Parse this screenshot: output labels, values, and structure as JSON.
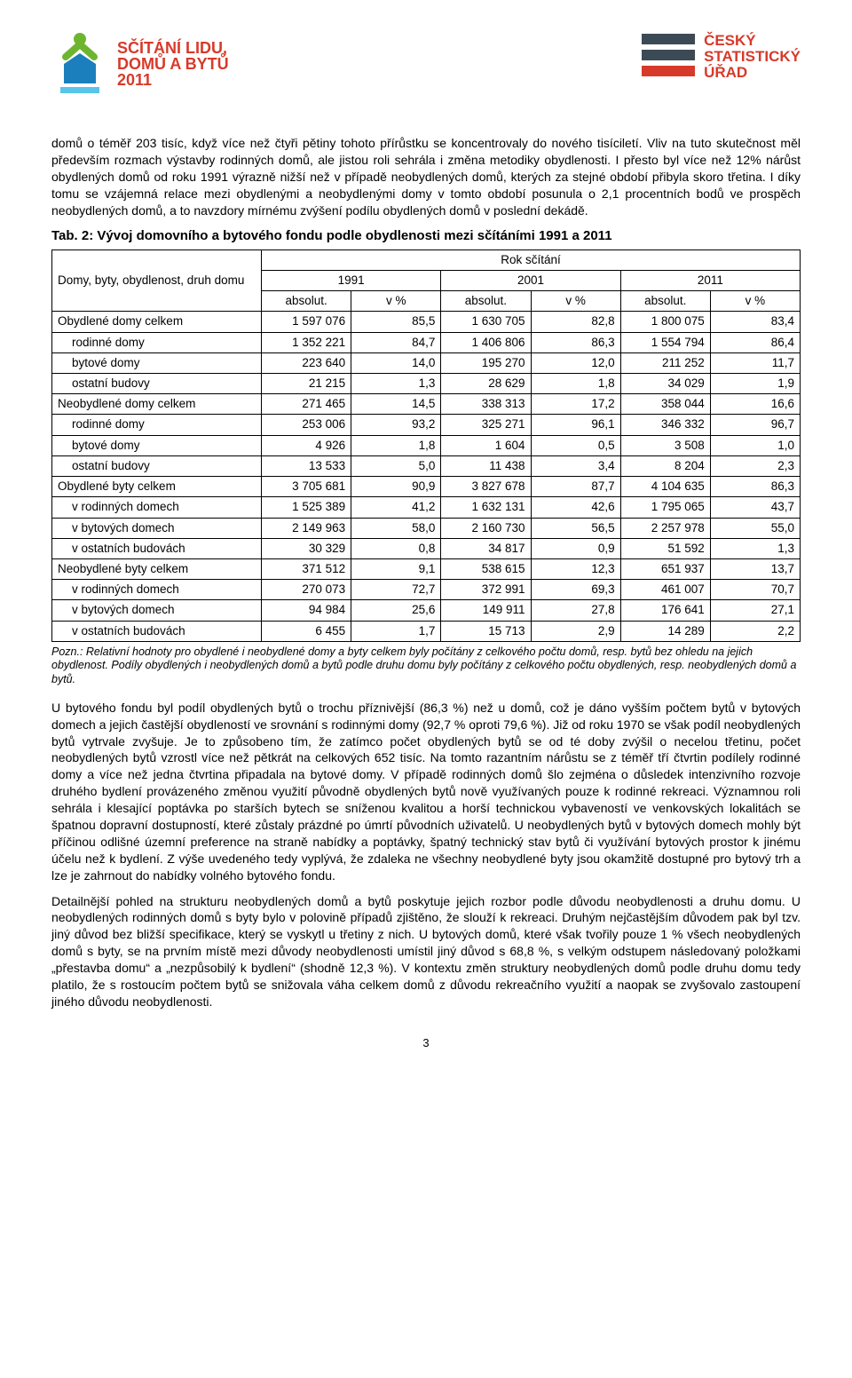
{
  "header": {
    "logo_left_line1": "SČÍTÁNÍ LIDU,",
    "logo_left_line2": "DOMŮ A BYTŮ",
    "logo_left_line3": "2011",
    "logo_right_line1": "ČESKÝ",
    "logo_right_line2": "STATISTICKÝ",
    "logo_right_line3": "ÚŘAD",
    "logo_left_icon_color1": "#6eb52f",
    "logo_left_icon_color2": "#1c7fbd",
    "bars_color_gray": "#3c4a55",
    "bars_color_red": "#d73a2a"
  },
  "para1": "domů o téměř 203 tisíc, když více než čtyři pětiny tohoto přírůstku se koncentrovaly do nového tisíciletí. Vliv na tuto skutečnost měl především rozmach výstavby rodinných domů, ale jistou roli sehrála i změna metodiky obydlenosti. I přesto byl více než 12% nárůst obydlených domů od roku 1991 výrazně nižší než v případě neobydlených domů, kterých za stejné období přibyla skoro třetina. I díky tomu se vzájemná relace mezi obydlenými a neobydlenými domy v tomto období posunula o 2,1 procentních bodů ve prospěch neobydlených domů, a to navzdory mírnému zvýšení podílu obydlených domů v poslední dekádě.",
  "table": {
    "caption": "Tab. 2: Vývoj domovního a bytového fondu podle obydlenosti mezi sčítáními 1991 a 2011",
    "rowhead": "Domy, byty, obydlenost, druh domu",
    "superhead": "Rok sčítání",
    "years": [
      "1991",
      "2001",
      "2011"
    ],
    "subcols": [
      "absolut.",
      "v %"
    ],
    "rows": [
      {
        "label": "Obydlené domy celkem",
        "indent": false,
        "vals": [
          "1 597 076",
          "85,5",
          "1 630 705",
          "82,8",
          "1 800 075",
          "83,4"
        ]
      },
      {
        "label": "rodinné domy",
        "indent": true,
        "vals": [
          "1 352 221",
          "84,7",
          "1 406 806",
          "86,3",
          "1 554 794",
          "86,4"
        ]
      },
      {
        "label": "bytové domy",
        "indent": true,
        "vals": [
          "223 640",
          "14,0",
          "195 270",
          "12,0",
          "211 252",
          "11,7"
        ]
      },
      {
        "label": "ostatní budovy",
        "indent": true,
        "vals": [
          "21 215",
          "1,3",
          "28 629",
          "1,8",
          "34 029",
          "1,9"
        ]
      },
      {
        "label": "Neobydlené domy celkem",
        "indent": false,
        "vals": [
          "271 465",
          "14,5",
          "338 313",
          "17,2",
          "358 044",
          "16,6"
        ]
      },
      {
        "label": "rodinné domy",
        "indent": true,
        "vals": [
          "253 006",
          "93,2",
          "325 271",
          "96,1",
          "346 332",
          "96,7"
        ]
      },
      {
        "label": "bytové domy",
        "indent": true,
        "vals": [
          "4 926",
          "1,8",
          "1 604",
          "0,5",
          "3 508",
          "1,0"
        ]
      },
      {
        "label": "ostatní budovy",
        "indent": true,
        "vals": [
          "13 533",
          "5,0",
          "11 438",
          "3,4",
          "8 204",
          "2,3"
        ]
      },
      {
        "label": "Obydlené byty celkem",
        "indent": false,
        "vals": [
          "3 705 681",
          "90,9",
          "3 827 678",
          "87,7",
          "4 104 635",
          "86,3"
        ]
      },
      {
        "label": "v rodinných domech",
        "indent": true,
        "vals": [
          "1 525 389",
          "41,2",
          "1 632 131",
          "42,6",
          "1 795 065",
          "43,7"
        ]
      },
      {
        "label": "v bytových domech",
        "indent": true,
        "vals": [
          "2 149 963",
          "58,0",
          "2 160 730",
          "56,5",
          "2 257 978",
          "55,0"
        ]
      },
      {
        "label": "v ostatních budovách",
        "indent": true,
        "vals": [
          "30 329",
          "0,8",
          "34 817",
          "0,9",
          "51 592",
          "1,3"
        ]
      },
      {
        "label": "Neobydlené byty celkem",
        "indent": false,
        "vals": [
          "371 512",
          "9,1",
          "538 615",
          "12,3",
          "651 937",
          "13,7"
        ]
      },
      {
        "label": "v rodinných domech",
        "indent": true,
        "vals": [
          "270 073",
          "72,7",
          "372 991",
          "69,3",
          "461 007",
          "70,7"
        ]
      },
      {
        "label": "v bytových domech",
        "indent": true,
        "vals": [
          "94 984",
          "25,6",
          "149 911",
          "27,8",
          "176 641",
          "27,1"
        ]
      },
      {
        "label": "v ostatních budovách",
        "indent": true,
        "vals": [
          "6 455",
          "1,7",
          "15 713",
          "2,9",
          "14 289",
          "2,2"
        ]
      }
    ],
    "footnote": "Pozn.: Relativní hodnoty pro obydlené i neobydlené domy a byty celkem byly počítány z celkového počtu domů, resp. bytů bez ohledu na jejich obydlenost. Podíly obydlených i neobydlených domů a bytů podle druhu domu byly počítány z celkového počtu obydlených, resp. neobydlených domů a bytů."
  },
  "para2": "U bytového fondu byl podíl obydlených bytů o trochu příznivější (86,3 %) než u domů, což je dáno vyšším počtem bytů v bytových domech a jejich častější obydleností ve srovnání s rodinnými domy (92,7 % oproti 79,6 %). Již od roku 1970 se však podíl neobydlených bytů vytrvale zvyšuje. Je to způsobeno tím, že zatímco počet obydlených bytů se od té doby zvýšil o necelou třetinu, počet neobydlených bytů vzrostl více než pětkrát na celkových 652 tisíc. Na tomto razantním nárůstu se z téměř tří čtvrtin podílely rodinné domy a více než jedna čtvrtina připadala na bytové domy. V případě rodinných domů šlo zejména o důsledek intenzivního rozvoje druhého bydlení provázeného změnou využití původně obydlených bytů nově využívaných pouze k rodinné rekreaci. Významnou roli sehrála i klesající poptávka po starších bytech se sníženou kvalitou a horší technickou vybaveností ve venkovských lokalitách se špatnou dopravní dostupností, které zůstaly prázdné po úmrtí původních uživatelů. U neobydlených bytů v bytových domech mohly být příčinou odlišné územní preference na straně nabídky a poptávky, špatný technický stav bytů či využívání bytových prostor k jinému účelu než k bydlení. Z výše uvedeného tedy vyplývá, že zdaleka ne všechny neobydlené byty jsou okamžitě dostupné pro bytový trh a lze je zahrnout do nabídky volného bytového fondu.",
  "para3": "Detailnější pohled na strukturu neobydlených domů a bytů poskytuje jejich rozbor podle důvodu neobydlenosti a druhu domu. U neobydlených rodinných domů s byty bylo v polovině případů zjištěno, že slouží k rekreaci. Druhým nejčastějším důvodem pak byl tzv. jiný důvod bez bližší specifikace, který se vyskytl u třetiny z nich. U bytových domů, které však tvořily pouze 1 % všech neobydlených domů s byty, se na prvním místě mezi důvody neobydlenosti umístil jiný důvod s 68,8 %, s velkým odstupem následovaný položkami „přestavba domu“ a „nezpůsobilý k bydlení“ (shodně 12,3 %). V kontextu změn struktury neobydlených domů podle druhu domu tedy platilo, že s rostoucím počtem bytů se snižovala váha celkem domů z důvodu rekreačního využití a naopak se zvyšovalo zastoupení jiného důvodu neobydlenosti.",
  "page_number": "3"
}
